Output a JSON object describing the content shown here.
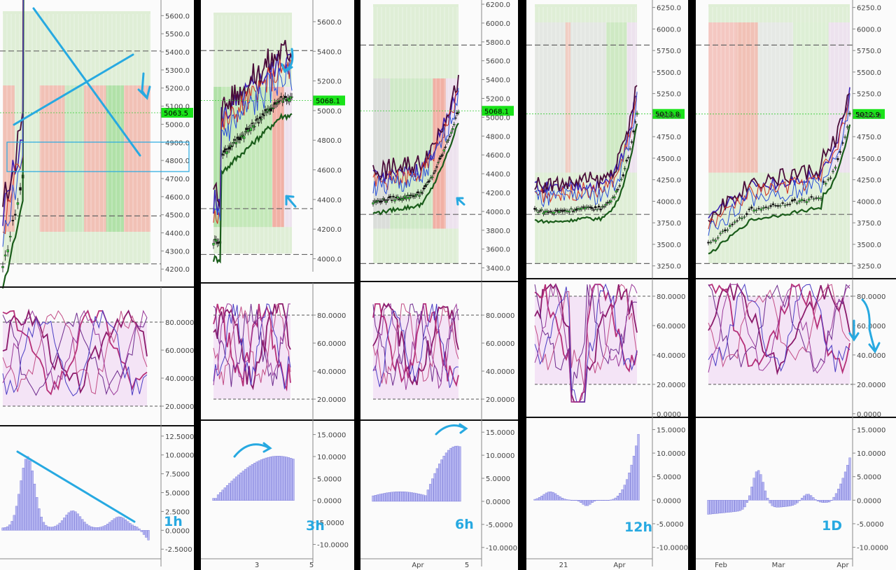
{
  "chart_data": [
    {
      "type": "line",
      "timeframe": "1h",
      "price": {
        "last": "5063.5",
        "ticks": [
          "5600.0",
          "5500.0",
          "5400.0",
          "5300.0",
          "5200.0",
          "5100.0",
          "5000.0",
          "4900.0",
          "4800.0",
          "4700.0",
          "4600.0",
          "4500.0",
          "4400.0",
          "4300.0",
          "4200.0"
        ],
        "ylim": [
          4170,
          5640
        ]
      },
      "osc": {
        "ticks": [
          "80.0000",
          "60.0000",
          "40.0000",
          "20.0000"
        ],
        "ylim": [
          10,
          100
        ]
      },
      "hist": {
        "ticks": [
          "12.5000",
          "10.0000",
          "7.5000",
          "5.0000",
          "2.5000",
          "0.0000",
          "-2.5000"
        ],
        "ylim": [
          -3.5,
          13.5
        ]
      },
      "x_ticks": [],
      "colors": {
        "hist_bar": "#b8b8f2",
        "hist_edge": "#6f6fd6"
      }
    },
    {
      "type": "line",
      "timeframe": "3h",
      "price": {
        "last": "5068.1",
        "ticks": [
          "5600.0",
          "5400.0",
          "5200.0",
          "5000.0",
          "4800.0",
          "4600.0",
          "4400.0",
          "4200.0",
          "4000.0"
        ],
        "ylim": [
          3960,
          5680
        ]
      },
      "osc": {
        "ticks": [
          "80.0000",
          "60.0000",
          "40.0000",
          "20.0000"
        ],
        "ylim": [
          10,
          100
        ]
      },
      "hist": {
        "ticks": [
          "15.0000",
          "10.0000",
          "5.0000",
          "0.0000",
          "-5.0000",
          "-10.0000"
        ],
        "ylim": [
          -12,
          17
        ]
      },
      "x_ticks": [
        "3",
        "5"
      ]
    },
    {
      "type": "line",
      "timeframe": "6h",
      "price": {
        "last": "5068.1",
        "ticks": [
          "6200.0",
          "6000.0",
          "5800.0",
          "5600.0",
          "5400.0",
          "5200.0",
          "5000.0",
          "4800.0",
          "4600.0",
          "4400.0",
          "4200.0",
          "4000.0",
          "3800.0",
          "3600.0",
          "3400.0"
        ],
        "ylim": [
          3330,
          6230
        ]
      },
      "osc": {
        "ticks": [
          "80.0000",
          "60.0000",
          "40.0000",
          "20.0000"
        ],
        "ylim": [
          10,
          100
        ]
      },
      "hist": {
        "ticks": [
          "15.0000",
          "10.0000",
          "5.0000",
          "0.0000",
          "-5.0000",
          "-10.0000"
        ],
        "ylim": [
          -12,
          17
        ]
      },
      "x_ticks": [
        "Apr",
        "5"
      ]
    },
    {
      "type": "line",
      "timeframe": "12h",
      "price": {
        "last": "5013.8",
        "ticks": [
          "6250.0",
          "6000.0",
          "5750.0",
          "5500.0",
          "5250.0",
          "5000.0",
          "4750.0",
          "4500.0",
          "4250.0",
          "4000.0",
          "3750.0",
          "3500.0",
          "3250.0"
        ],
        "ylim": [
          3150,
          6320
        ]
      },
      "osc": {
        "ticks": [
          "80.0000",
          "60.0000",
          "40.0000",
          "20.0000",
          "0.0000"
        ],
        "ylim": [
          -2,
          90
        ]
      },
      "hist": {
        "ticks": [
          "15.0000",
          "10.0000",
          "5.0000",
          "0.0000",
          "-5.0000",
          "-10.0000"
        ],
        "ylim": [
          -12,
          17
        ]
      },
      "x_ticks": [
        "21",
        "Apr"
      ]
    },
    {
      "type": "line",
      "timeframe": "1D",
      "price": {
        "last": "5012.9",
        "ticks": [
          "6250.0",
          "6000.0",
          "5750.0",
          "5500.0",
          "5250.0",
          "5000.0",
          "4750.0",
          "4500.0",
          "4250.0",
          "4000.0",
          "3750.0",
          "3500.0",
          "3250.0"
        ],
        "ylim": [
          3150,
          6320
        ]
      },
      "osc": {
        "ticks": [
          "80.0000",
          "60.0000",
          "40.0000",
          "20.0000",
          "0.0000"
        ],
        "ylim": [
          -2,
          90
        ]
      },
      "hist": {
        "ticks": [
          "15.0000",
          "10.0000",
          "5.0000",
          "0.0000",
          "-5.0000",
          "-10.0000"
        ],
        "ylim": [
          -12,
          17
        ]
      },
      "x_ticks": [
        "Feb",
        "Mar",
        "Apr"
      ]
    }
  ]
}
